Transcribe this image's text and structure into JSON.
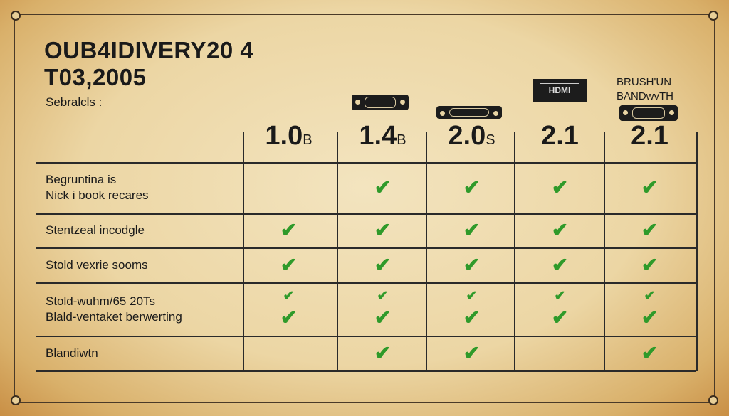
{
  "title_lines": [
    "OUB4IDIVERY20 4",
    "T03,2005"
  ],
  "subtitle": "Sebralcls :",
  "hdmi_logo": "HDMI",
  "extra_header": [
    "BRUSH'UN",
    "BANDwvTH"
  ],
  "columns": [
    {
      "version": "1.0",
      "suffix": "B"
    },
    {
      "version": "1.4",
      "suffix": "B"
    },
    {
      "version": "2.0",
      "suffix": "S"
    },
    {
      "version": "2.1",
      "suffix": ""
    },
    {
      "version": "2.1",
      "suffix": ""
    }
  ],
  "rows": [
    {
      "label": [
        "Begruntina is",
        "Nick i book recares"
      ],
      "checks": [
        false,
        true,
        true,
        true,
        true
      ]
    },
    {
      "label": [
        "Stentzeal incodgle"
      ],
      "checks": [
        true,
        true,
        true,
        true,
        true
      ]
    },
    {
      "label": [
        "Stold vexrie sooms"
      ],
      "checks": [
        true,
        true,
        true,
        true,
        true
      ]
    },
    {
      "label": [
        "Stold-wuhm/65 20Ts",
        "Blald-ventaket berwerting"
      ],
      "checks": [
        true,
        true,
        true,
        true,
        true
      ],
      "double": true
    },
    {
      "label": [
        "Blandiwtn"
      ],
      "checks": [
        false,
        true,
        true,
        false,
        true
      ]
    }
  ],
  "check_glyph": "✔",
  "colors": {
    "check": "#2f9a2a",
    "ink": "#1a1a1a"
  }
}
